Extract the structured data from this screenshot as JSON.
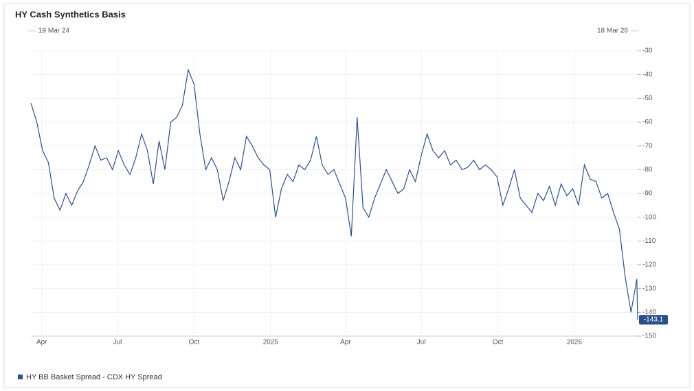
{
  "chart_data": {
    "type": "line",
    "title": "HY Cash Synthetics Basis",
    "range_start": "19 Mar 24",
    "range_end": "18 Mar 26",
    "xlim": [
      "2024-03-19",
      "2026-03-18"
    ],
    "xticks": [
      {
        "value": "2024-04-01",
        "label": "Apr"
      },
      {
        "value": "2024-07-01",
        "label": "Jul"
      },
      {
        "value": "2024-10-01",
        "label": "Oct"
      },
      {
        "value": "2025-01-01",
        "label": "2025"
      },
      {
        "value": "2025-04-01",
        "label": "Apr"
      },
      {
        "value": "2025-07-01",
        "label": "Jul"
      },
      {
        "value": "2025-10-01",
        "label": "Oct"
      },
      {
        "value": "2026-01-01",
        "label": "2026"
      }
    ],
    "ylim": [
      -150,
      -30
    ],
    "yticks": [
      -150,
      -140,
      -130,
      -120,
      -110,
      -100,
      -90,
      -80,
      -70,
      -60,
      -50,
      -40,
      -30
    ],
    "grid": true,
    "legend": "bottom-left",
    "x": [
      "2024-03-19",
      "2024-03-26",
      "2024-04-02",
      "2024-04-09",
      "2024-04-16",
      "2024-04-23",
      "2024-04-30",
      "2024-05-07",
      "2024-05-14",
      "2024-05-21",
      "2024-05-28",
      "2024-06-04",
      "2024-06-11",
      "2024-06-18",
      "2024-06-25",
      "2024-07-02",
      "2024-07-09",
      "2024-07-16",
      "2024-07-23",
      "2024-07-30",
      "2024-08-06",
      "2024-08-13",
      "2024-08-20",
      "2024-08-27",
      "2024-09-03",
      "2024-09-10",
      "2024-09-17",
      "2024-09-24",
      "2024-10-01",
      "2024-10-08",
      "2024-10-15",
      "2024-10-22",
      "2024-10-29",
      "2024-11-05",
      "2024-11-12",
      "2024-11-19",
      "2024-11-26",
      "2024-12-03",
      "2024-12-10",
      "2024-12-17",
      "2024-12-24",
      "2024-12-31",
      "2025-01-07",
      "2025-01-14",
      "2025-01-21",
      "2025-01-28",
      "2025-02-04",
      "2025-02-11",
      "2025-02-18",
      "2025-02-25",
      "2025-03-04",
      "2025-03-11",
      "2025-03-18",
      "2025-03-25",
      "2025-04-01",
      "2025-04-08",
      "2025-04-15",
      "2025-04-22",
      "2025-04-29",
      "2025-05-06",
      "2025-05-13",
      "2025-05-20",
      "2025-05-27",
      "2025-06-03",
      "2025-06-10",
      "2025-06-17",
      "2025-06-24",
      "2025-07-01",
      "2025-07-08",
      "2025-07-15",
      "2025-07-22",
      "2025-07-29",
      "2025-08-05",
      "2025-08-12",
      "2025-08-19",
      "2025-08-26",
      "2025-09-02",
      "2025-09-09",
      "2025-09-16",
      "2025-09-23",
      "2025-09-30",
      "2025-10-07",
      "2025-10-14",
      "2025-10-21",
      "2025-10-28",
      "2025-11-04",
      "2025-11-11",
      "2025-11-18",
      "2025-11-25",
      "2025-12-02",
      "2025-12-09",
      "2025-12-16",
      "2025-12-23",
      "2025-12-30",
      "2026-01-06",
      "2026-01-13",
      "2026-01-20",
      "2026-01-27",
      "2026-02-03",
      "2026-02-10",
      "2026-02-17",
      "2026-02-24",
      "2026-03-03",
      "2026-03-10",
      "2026-03-17",
      "2026-03-18"
    ],
    "series": [
      {
        "name": "HY BB Basket Spread - CDX HY Spread",
        "color": "#2b4f8a",
        "values": [
          -52,
          -60,
          -72,
          -77,
          -92,
          -97,
          -90,
          -95,
          -89,
          -85,
          -78,
          -70,
          -76,
          -75,
          -80,
          -72,
          -78,
          -82,
          -75,
          -65,
          -72,
          -86,
          -68,
          -80,
          -60,
          -58,
          -53,
          -38,
          -44,
          -65,
          -80,
          -75,
          -80,
          -93,
          -85,
          -75,
          -80,
          -66,
          -70,
          -75,
          -78,
          -80,
          -100,
          -88,
          -82,
          -85,
          -78,
          -80,
          -76,
          -66,
          -78,
          -82,
          -80,
          -86,
          -92,
          -108,
          -58,
          -96,
          -100,
          -92,
          -86,
          -80,
          -85,
          -90,
          -88,
          -80,
          -85,
          -74,
          -65,
          -72,
          -75,
          -72,
          -78,
          -76,
          -80,
          -79,
          -76,
          -80,
          -78,
          -80,
          -83,
          -95,
          -88,
          -80,
          -92,
          -95,
          -98,
          -90,
          -93,
          -87,
          -95,
          -86,
          -91,
          -88,
          -95,
          -78,
          -84,
          -85,
          -92,
          -90,
          -98,
          -105,
          -125,
          -140,
          -126,
          -143.1
        ]
      }
    ]
  }
}
